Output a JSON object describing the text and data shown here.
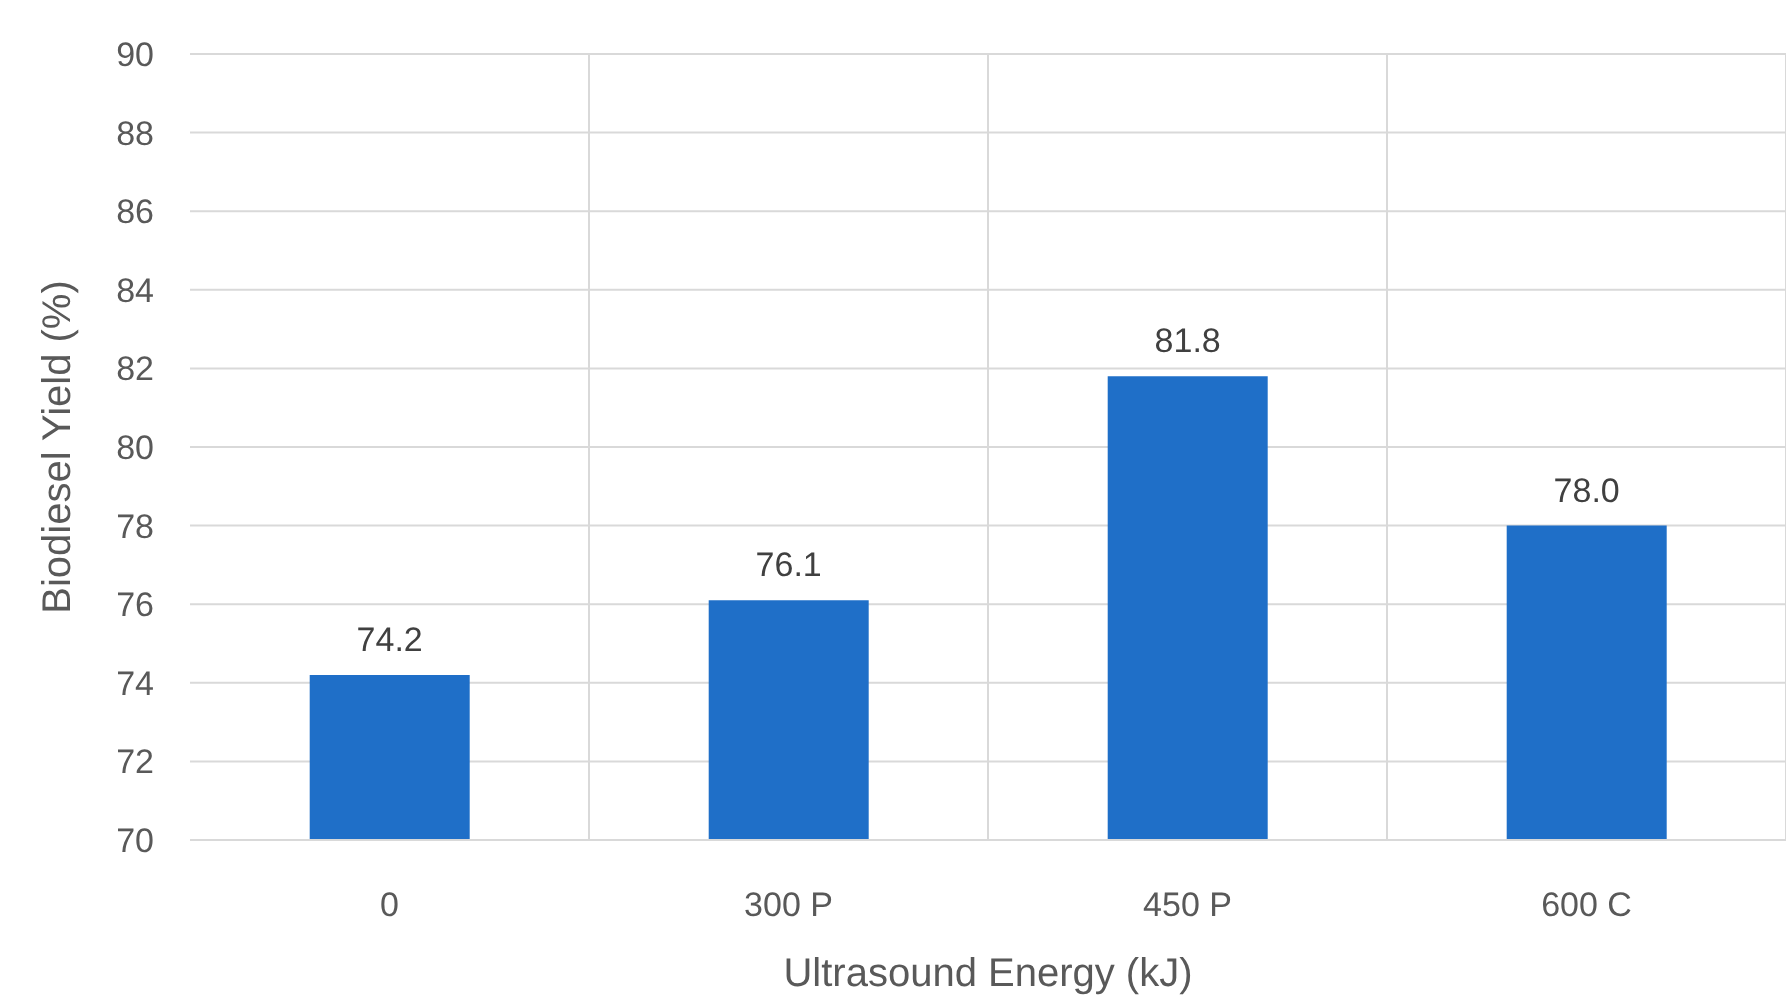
{
  "chart_data": {
    "type": "bar",
    "categories": [
      "0",
      "300 P",
      "450 P",
      "600 C"
    ],
    "values": [
      74.2,
      76.1,
      81.8,
      78.0
    ],
    "value_labels": [
      "74.2",
      "76.1",
      "81.8",
      "78.0"
    ],
    "color": "#1f6fc8",
    "xlabel": "Ultrasound Energy (kJ)",
    "ylabel": "Biodiesel Yield (%)",
    "ylim": [
      70,
      90
    ],
    "yticks": [
      70,
      72,
      74,
      76,
      78,
      80,
      82,
      84,
      86,
      88,
      90
    ],
    "grid": true,
    "legend": false
  }
}
